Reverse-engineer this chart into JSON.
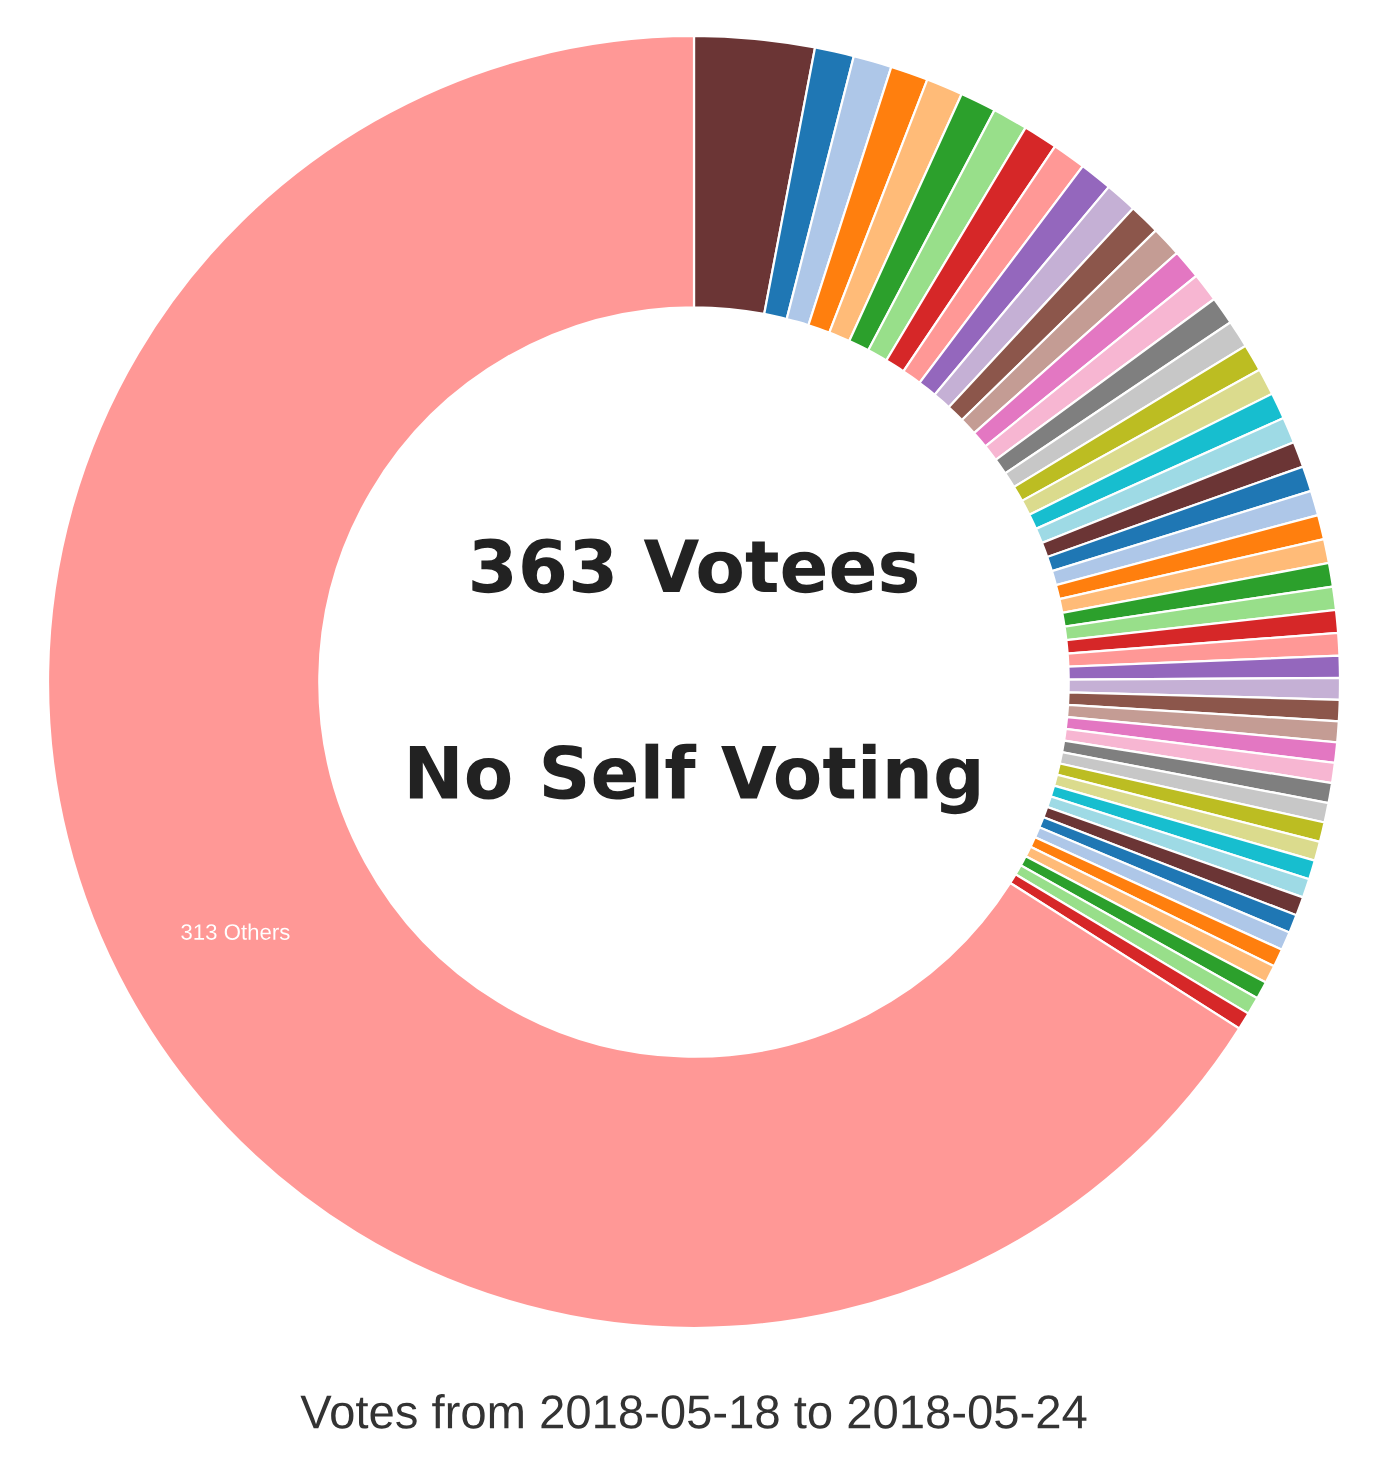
{
  "chart_data": {
    "type": "donut",
    "title": "Votes from 2018-05-18 to 2018-05-24",
    "annotations": [
      "363 Votees",
      "No Self Voting"
    ],
    "categories": [
      null,
      null,
      null,
      null,
      null,
      null,
      null,
      null,
      null,
      null,
      null,
      null,
      null,
      null,
      null,
      null,
      null,
      null,
      null,
      null,
      null,
      null,
      null,
      null,
      null,
      null,
      null,
      null,
      null,
      null,
      null,
      null,
      null,
      null,
      null,
      null,
      null,
      null,
      null,
      null,
      null,
      null,
      null,
      null,
      null,
      null,
      null,
      null,
      null,
      null,
      "313 Others"
    ],
    "values": [
      3.0,
      0.98,
      0.96,
      0.94,
      0.92,
      0.9,
      0.88,
      0.86,
      0.84,
      0.82,
      0.8,
      0.78,
      0.76,
      0.74,
      0.72,
      0.7,
      0.69,
      0.68,
      0.67,
      0.66,
      0.65,
      0.64,
      0.63,
      0.62,
      0.61,
      0.6,
      0.59,
      0.58,
      0.57,
      0.56,
      0.55,
      0.54,
      0.53,
      0.52,
      0.51,
      0.5,
      0.5,
      0.49,
      0.49,
      0.48,
      0.48,
      0.47,
      0.47,
      0.46,
      0.46,
      0.45,
      0.45,
      0.44,
      0.44,
      0.43,
      65.99
    ],
    "colors": [
      "#6b3535",
      "#1f77b4",
      "#aec7e8",
      "#ff7f0e",
      "#ffbb78",
      "#2ca02c",
      "#98df8a",
      "#d62728",
      "#ff9896",
      "#9467bd",
      "#c5b0d5",
      "#8c564b",
      "#c49c94",
      "#e377c2",
      "#f7b6d2",
      "#7f7f7f",
      "#c7c7c7",
      "#bcbd22",
      "#dbdb8d",
      "#17becf",
      "#9edae5",
      "#6b3535",
      "#1f77b4",
      "#aec7e8",
      "#ff7f0e",
      "#ffbb78",
      "#2ca02c",
      "#98df8a",
      "#d62728",
      "#ff9896",
      "#9467bd",
      "#c5b0d5",
      "#8c564b",
      "#c49c94",
      "#e377c2",
      "#f7b6d2",
      "#7f7f7f",
      "#c7c7c7",
      "#bcbd22",
      "#dbdb8d",
      "#17becf",
      "#9edae5",
      "#6b3535",
      "#1f77b4",
      "#aec7e8",
      "#ff7f0e",
      "#ffbb78",
      "#2ca02c",
      "#98df8a",
      "#d62728",
      "#ff9896"
    ]
  }
}
